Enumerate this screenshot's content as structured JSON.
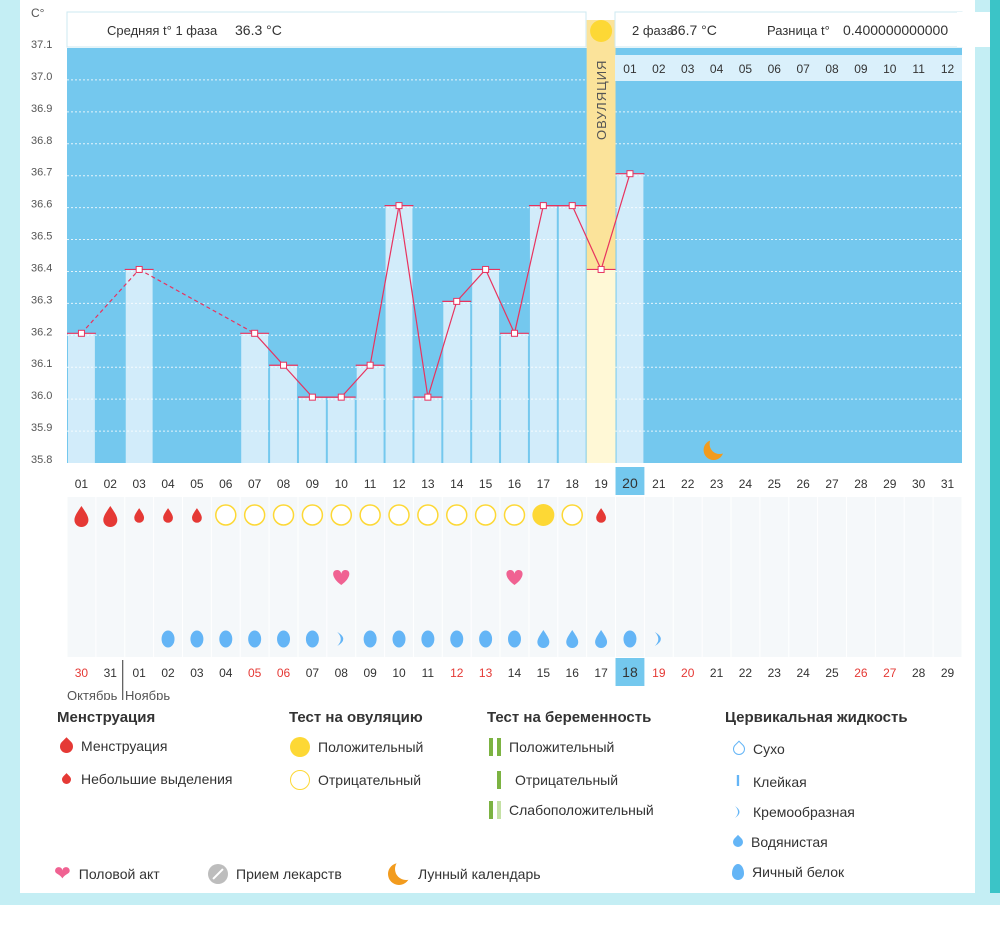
{
  "chart_data": {
    "type": "line",
    "title": "",
    "ylabel": "C°",
    "ylim": [
      35.8,
      37.1
    ],
    "yticks": [
      "35.8",
      "35.9",
      "36.0",
      "36.1",
      "36.2",
      "36.3",
      "36.4",
      "36.5",
      "36.6",
      "36.7",
      "36.8",
      "36.9",
      "37.0",
      "37.1"
    ],
    "phase1_label": "Средняя t° 1 фаза",
    "phase1_value": "36.3 °C",
    "phase2_label": "2 фаза",
    "phase2_value": "36.7 °C",
    "diff_label": "Разница t°",
    "diff_value": "0.400000000000",
    "ovulation_label": "ОВУЛЯЦИЯ",
    "ovulation_day": "19",
    "current_day": "20",
    "days": [
      "01",
      "02",
      "03",
      "04",
      "05",
      "06",
      "07",
      "08",
      "09",
      "10",
      "11",
      "12",
      "13",
      "14",
      "15",
      "16",
      "17",
      "18",
      "19",
      "20",
      "21",
      "22",
      "23",
      "24",
      "25",
      "26",
      "27",
      "28",
      "29",
      "30",
      "31"
    ],
    "temperatures": [
      36.2,
      null,
      36.4,
      null,
      null,
      null,
      36.2,
      36.1,
      36.0,
      36.0,
      36.1,
      36.6,
      36.0,
      36.3,
      36.4,
      36.2,
      36.6,
      36.6,
      36.4,
      36.7
    ],
    "next_cycle_days": [
      "01",
      "02",
      "03",
      "04",
      "05",
      "06",
      "07",
      "08",
      "09",
      "10",
      "11",
      "12"
    ],
    "menstruation": [
      "big",
      "big",
      "small",
      "small",
      "small",
      "",
      "",
      "",
      "",
      "",
      "",
      "",
      "",
      "",
      "",
      "",
      "",
      "",
      "small"
    ],
    "ovulation_test": [
      "",
      "",
      "",
      "",
      "",
      "neg",
      "neg",
      "neg",
      "neg",
      "neg",
      "neg",
      "neg",
      "neg",
      "neg",
      "neg",
      "neg",
      "pos",
      "neg",
      ""
    ],
    "intercourse_days": [
      "10",
      "16"
    ],
    "cervical_fluid": [
      "",
      "",
      "",
      "egg",
      "egg",
      "egg",
      "egg",
      "egg",
      "egg",
      "cream",
      "egg",
      "egg",
      "egg",
      "egg",
      "egg",
      "egg",
      "water",
      "water",
      "water",
      "egg",
      "cream"
    ],
    "moon_day": "23",
    "calendar_dates": [
      "30",
      "31",
      "01",
      "02",
      "03",
      "04",
      "05",
      "06",
      "07",
      "08",
      "09",
      "10",
      "11",
      "12",
      "13",
      "14",
      "15",
      "16",
      "17",
      "18",
      "19",
      "20",
      "21",
      "22",
      "23",
      "24",
      "25",
      "26",
      "27",
      "28",
      "29"
    ],
    "calendar_red": [
      "30",
      "05",
      "06",
      "12",
      "13",
      "19",
      "20",
      "26",
      "27"
    ],
    "today_date": "18",
    "month_left": "Октябрь",
    "month_right": "Ноябрь"
  },
  "legend": {
    "menstruation": {
      "title": "Менструация",
      "items": [
        "Менструация",
        "Небольшие выделения"
      ]
    },
    "ovulation_test": {
      "title": "Тест на овуляцию",
      "items": [
        "Положительный",
        "Отрицательный"
      ]
    },
    "pregnancy_test": {
      "title": "Тест на беременность",
      "items": [
        "Положительный",
        "Отрицательный",
        "Слабоположительный"
      ]
    },
    "cervical": {
      "title": "Цервикальная жидкость",
      "items": [
        "Сухо",
        "Клейкая",
        "Кремообразная",
        "Водянистая",
        "Яичный белок"
      ]
    },
    "bottom": [
      "Половой акт",
      "Прием лекарств",
      "Лунный календарь"
    ],
    "sticky_glyph": "I"
  },
  "colors": {
    "sky": "#74c8ee",
    "bar": "#d2ecfa",
    "line": "#e8335f",
    "ovulation": "#fbe39a",
    "drop": "#e53935",
    "yellow": "#fdd835",
    "heart": "#f06292",
    "fluid": "#64b5f6",
    "moon": "#f29b1d"
  }
}
